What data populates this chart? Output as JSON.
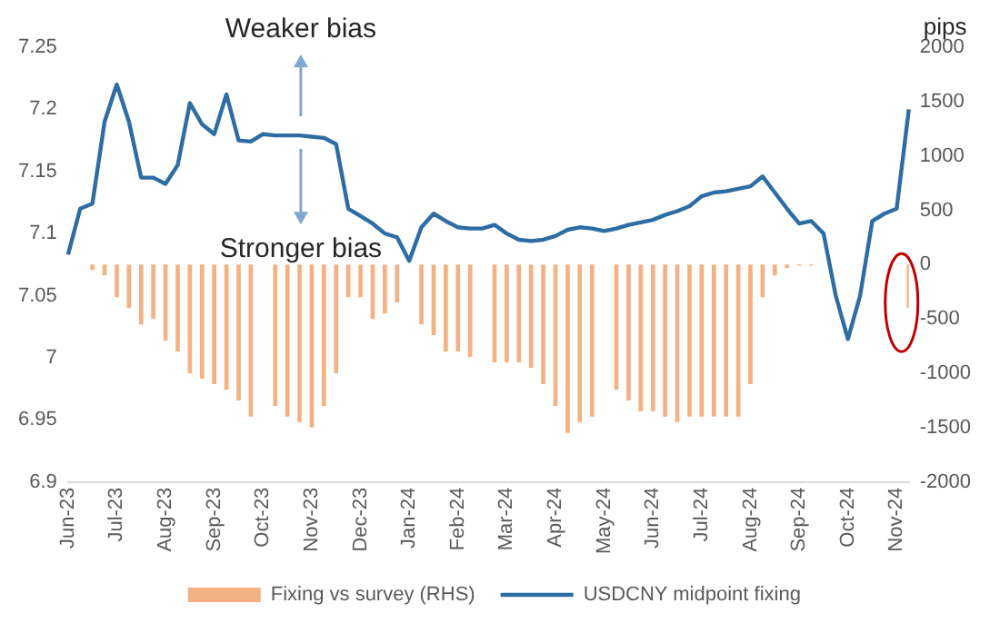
{
  "chart_data": {
    "type": "line",
    "y2label": "pips",
    "legend": "bottom",
    "grid": false,
    "marker": "none",
    "categories": [
      "Jun-23",
      null,
      null,
      null,
      "Jul-23",
      null,
      null,
      null,
      "Aug-23",
      null,
      null,
      null,
      "Sep-23",
      null,
      null,
      null,
      "Oct-23",
      null,
      null,
      null,
      "Nov-23",
      null,
      null,
      null,
      "Dec-23",
      null,
      null,
      null,
      "Jan-24",
      null,
      null,
      null,
      "Feb-24",
      null,
      null,
      null,
      "Mar-24",
      null,
      null,
      null,
      "Apr-24",
      null,
      null,
      null,
      "May-24",
      null,
      null,
      null,
      "Jun-24",
      null,
      null,
      null,
      "Jul-24",
      null,
      null,
      null,
      "Aug-24",
      null,
      null,
      null,
      "Sep-24",
      null,
      null,
      null,
      "Oct-24",
      null,
      null,
      null,
      "Nov-24",
      null
    ],
    "ylim": [
      6.9,
      7.25
    ],
    "yticks": [
      6.9,
      6.95,
      7,
      7.05,
      7.1,
      7.15,
      7.2,
      7.25
    ],
    "y2lim": [
      -2000,
      2000
    ],
    "y2ticks": [
      -2000,
      -1500,
      -1000,
      -500,
      0,
      500,
      1000,
      1500,
      2000
    ],
    "annotations": [
      "Weaker bias",
      "Stronger bias"
    ],
    "series": [
      {
        "name": "Fixing vs survey (RHS)",
        "type": "bar",
        "axis": "y2",
        "color": "#f4b183",
        "values": [
          null,
          null,
          -50,
          -100,
          -300,
          -400,
          -550,
          -500,
          -700,
          -800,
          -1000,
          -1050,
          -1100,
          -1150,
          -1250,
          -1400,
          null,
          -1300,
          -1400,
          -1450,
          -1500,
          -1300,
          -1000,
          -300,
          -300,
          -500,
          -450,
          -350,
          null,
          -550,
          -650,
          -800,
          -800,
          -850,
          null,
          -900,
          -900,
          -900,
          -950,
          -1100,
          -1300,
          -1550,
          -1450,
          -1400,
          null,
          -1150,
          -1250,
          -1350,
          -1350,
          -1400,
          -1450,
          -1400,
          -1400,
          -1400,
          -1400,
          -1400,
          -1100,
          -300,
          -100,
          -30,
          -10,
          -10,
          null,
          null,
          null,
          null,
          null,
          null,
          null,
          -400
        ]
      },
      {
        "name": "USDCNY midpoint fixing",
        "color": "#2e6da4",
        "values": [
          7.083,
          7.12,
          7.124,
          7.19,
          7.22,
          7.19,
          7.145,
          7.145,
          7.14,
          7.155,
          7.205,
          7.188,
          7.18,
          7.212,
          7.175,
          7.174,
          7.18,
          7.179,
          7.179,
          7.179,
          7.178,
          7.177,
          7.172,
          7.12,
          7.114,
          7.108,
          7.1,
          7.097,
          7.078,
          7.105,
          7.116,
          7.11,
          7.105,
          7.104,
          7.104,
          7.107,
          7.1,
          7.095,
          7.094,
          7.095,
          7.098,
          7.103,
          7.105,
          7.104,
          7.102,
          7.104,
          7.107,
          7.109,
          7.111,
          7.115,
          7.118,
          7.122,
          7.13,
          7.133,
          7.134,
          7.136,
          7.138,
          7.146,
          7.133,
          7.12,
          7.108,
          7.11,
          7.1,
          7.05,
          7.015,
          7.05,
          7.11,
          7.116,
          7.12,
          7.2
        ]
      }
    ]
  }
}
